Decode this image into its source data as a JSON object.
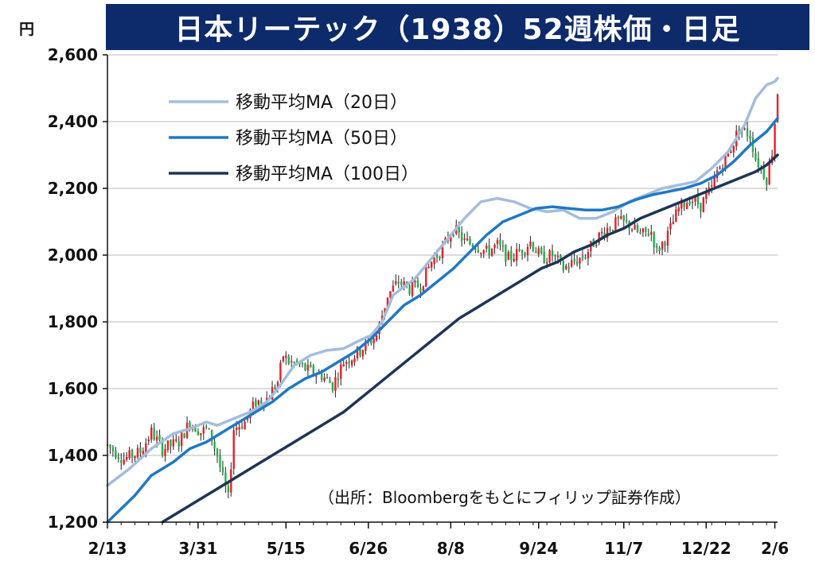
{
  "title": "日本リーテック（1938）52週株価・日足",
  "unit": "円",
  "source": "（出所：Bloombergをもとにフィリップ証券作成）",
  "colors": {
    "title_bg": "#0d2a6b",
    "ma20": "#a3bddc",
    "ma50": "#1f78c8",
    "ma100": "#1d3557",
    "up": "#e8202a",
    "down": "#22b04b",
    "grid": "#c8c8c8"
  },
  "chart_data": {
    "type": "candlestick",
    "title": "日本リーテック（1938）52週株価・日足",
    "ylabel": "円",
    "ylim": [
      1200,
      2600
    ],
    "yticks": [
      "2,600",
      "2,400",
      "2,200",
      "2,000",
      "1,800",
      "1,600",
      "1,400",
      "1,200"
    ],
    "ytick_values": [
      2600,
      2400,
      2200,
      2000,
      1800,
      1600,
      1400,
      1200
    ],
    "xticks": [
      "2/13",
      "3/31",
      "5/15",
      "6/26",
      "8/8",
      "9/24",
      "11/7",
      "12/22",
      "2/6"
    ],
    "xtick_index": [
      0,
      33,
      65,
      95,
      125,
      157,
      188,
      218,
      243
    ],
    "grid": true,
    "legend_placement": "top-left",
    "series": [
      {
        "name": "移動平均MA（20日）",
        "color": "#a3bddc",
        "points": [
          [
            0,
            1310
          ],
          [
            8,
            1360
          ],
          [
            16,
            1420
          ],
          [
            24,
            1465
          ],
          [
            30,
            1480
          ],
          [
            36,
            1500
          ],
          [
            40,
            1490
          ],
          [
            46,
            1510
          ],
          [
            52,
            1530
          ],
          [
            58,
            1560
          ],
          [
            62,
            1600
          ],
          [
            68,
            1670
          ],
          [
            74,
            1700
          ],
          [
            80,
            1715
          ],
          [
            86,
            1720
          ],
          [
            92,
            1745
          ],
          [
            96,
            1760
          ],
          [
            100,
            1800
          ],
          [
            104,
            1880
          ],
          [
            108,
            1905
          ],
          [
            112,
            1930
          ],
          [
            118,
            1990
          ],
          [
            124,
            2050
          ],
          [
            130,
            2110
          ],
          [
            136,
            2160
          ],
          [
            142,
            2170
          ],
          [
            148,
            2160
          ],
          [
            154,
            2140
          ],
          [
            160,
            2130
          ],
          [
            166,
            2135
          ],
          [
            172,
            2110
          ],
          [
            178,
            2110
          ],
          [
            184,
            2130
          ],
          [
            190,
            2160
          ],
          [
            196,
            2180
          ],
          [
            202,
            2200
          ],
          [
            208,
            2210
          ],
          [
            214,
            2220
          ],
          [
            220,
            2260
          ],
          [
            226,
            2310
          ],
          [
            232,
            2390
          ],
          [
            236,
            2470
          ],
          [
            240,
            2510
          ],
          [
            243,
            2520
          ],
          [
            244,
            2530
          ]
        ]
      },
      {
        "name": "移動平均MA（50日）",
        "color": "#1f78c8",
        "points": [
          [
            0,
            1200
          ],
          [
            10,
            1280
          ],
          [
            16,
            1340
          ],
          [
            24,
            1380
          ],
          [
            30,
            1420
          ],
          [
            36,
            1440
          ],
          [
            42,
            1470
          ],
          [
            48,
            1500
          ],
          [
            54,
            1530
          ],
          [
            60,
            1560
          ],
          [
            66,
            1600
          ],
          [
            72,
            1630
          ],
          [
            78,
            1650
          ],
          [
            84,
            1680
          ],
          [
            90,
            1710
          ],
          [
            96,
            1750
          ],
          [
            102,
            1800
          ],
          [
            108,
            1850
          ],
          [
            114,
            1880
          ],
          [
            120,
            1920
          ],
          [
            126,
            1960
          ],
          [
            132,
            2010
          ],
          [
            138,
            2060
          ],
          [
            144,
            2100
          ],
          [
            150,
            2120
          ],
          [
            156,
            2140
          ],
          [
            162,
            2145
          ],
          [
            168,
            2140
          ],
          [
            174,
            2135
          ],
          [
            180,
            2135
          ],
          [
            186,
            2145
          ],
          [
            192,
            2165
          ],
          [
            198,
            2180
          ],
          [
            204,
            2190
          ],
          [
            210,
            2200
          ],
          [
            216,
            2215
          ],
          [
            222,
            2240
          ],
          [
            228,
            2280
          ],
          [
            234,
            2330
          ],
          [
            240,
            2370
          ],
          [
            244,
            2410
          ]
        ]
      },
      {
        "name": "移動平均MA（100日）",
        "color": "#1d3557",
        "points": [
          [
            20,
            1200
          ],
          [
            26,
            1230
          ],
          [
            32,
            1260
          ],
          [
            38,
            1290
          ],
          [
            44,
            1320
          ],
          [
            50,
            1350
          ],
          [
            56,
            1380
          ],
          [
            62,
            1410
          ],
          [
            68,
            1440
          ],
          [
            74,
            1470
          ],
          [
            80,
            1500
          ],
          [
            86,
            1530
          ],
          [
            92,
            1570
          ],
          [
            98,
            1610
          ],
          [
            104,
            1650
          ],
          [
            110,
            1690
          ],
          [
            116,
            1730
          ],
          [
            122,
            1770
          ],
          [
            128,
            1810
          ],
          [
            134,
            1840
          ],
          [
            140,
            1870
          ],
          [
            146,
            1900
          ],
          [
            152,
            1930
          ],
          [
            158,
            1960
          ],
          [
            164,
            1980
          ],
          [
            170,
            2010
          ],
          [
            176,
            2030
          ],
          [
            182,
            2060
          ],
          [
            188,
            2080
          ],
          [
            194,
            2110
          ],
          [
            200,
            2130
          ],
          [
            206,
            2150
          ],
          [
            212,
            2170
          ],
          [
            218,
            2190
          ],
          [
            224,
            2210
          ],
          [
            230,
            2230
          ],
          [
            236,
            2250
          ],
          [
            240,
            2270
          ],
          [
            244,
            2300
          ]
        ]
      }
    ],
    "price_path": [
      [
        0,
        1430
      ],
      [
        6,
        1390
      ],
      [
        12,
        1410
      ],
      [
        16,
        1470
      ],
      [
        20,
        1420
      ],
      [
        26,
        1440
      ],
      [
        30,
        1500
      ],
      [
        34,
        1470
      ],
      [
        36,
        1480
      ],
      [
        38,
        1450
      ],
      [
        40,
        1400
      ],
      [
        42,
        1330
      ],
      [
        44,
        1270
      ],
      [
        46,
        1480
      ],
      [
        50,
        1500
      ],
      [
        54,
        1560
      ],
      [
        58,
        1570
      ],
      [
        62,
        1620
      ],
      [
        64,
        1700
      ],
      [
        66,
        1680
      ],
      [
        70,
        1670
      ],
      [
        74,
        1650
      ],
      [
        78,
        1640
      ],
      [
        82,
        1610
      ],
      [
        86,
        1680
      ],
      [
        90,
        1700
      ],
      [
        94,
        1730
      ],
      [
        98,
        1760
      ],
      [
        102,
        1880
      ],
      [
        106,
        1920
      ],
      [
        110,
        1900
      ],
      [
        114,
        1910
      ],
      [
        118,
        1980
      ],
      [
        122,
        2020
      ],
      [
        126,
        2080
      ],
      [
        130,
        2040
      ],
      [
        134,
        2030
      ],
      [
        138,
        2010
      ],
      [
        142,
        2030
      ],
      [
        146,
        1990
      ],
      [
        150,
        2010
      ],
      [
        154,
        2040
      ],
      [
        158,
        1990
      ],
      [
        162,
        2000
      ],
      [
        166,
        1960
      ],
      [
        170,
        1980
      ],
      [
        174,
        2000
      ],
      [
        178,
        2050
      ],
      [
        182,
        2080
      ],
      [
        186,
        2100
      ],
      [
        190,
        2090
      ],
      [
        194,
        2060
      ],
      [
        198,
        2070
      ],
      [
        200,
        2010
      ],
      [
        204,
        2060
      ],
      [
        208,
        2140
      ],
      [
        212,
        2170
      ],
      [
        216,
        2150
      ],
      [
        220,
        2200
      ],
      [
        222,
        2250
      ],
      [
        226,
        2300
      ],
      [
        230,
        2380
      ],
      [
        234,
        2360
      ],
      [
        236,
        2290
      ],
      [
        240,
        2230
      ],
      [
        242,
        2310
      ],
      [
        244,
        2490
      ]
    ]
  }
}
